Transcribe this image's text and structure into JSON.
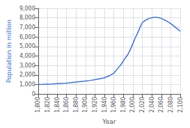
{
  "chart_data": {
    "type": "line",
    "xlabel": "Year",
    "ylabel": "Population in million",
    "x": [
      1800,
      1810,
      1820,
      1830,
      1840,
      1850,
      1860,
      1870,
      1880,
      1890,
      1900,
      1910,
      1920,
      1930,
      1940,
      1950,
      1960,
      1970,
      1975,
      1980,
      1985,
      1990,
      1995,
      2000,
      2005,
      2010,
      2015,
      2020,
      2025,
      2030,
      2035,
      2040,
      2045,
      2050,
      2055,
      2060,
      2065,
      2070,
      2080,
      2090,
      2100
    ],
    "values": [
      1000,
      1010,
      1040,
      1060,
      1090,
      1120,
      1150,
      1210,
      1260,
      1310,
      1360,
      1430,
      1510,
      1610,
      1710,
      1910,
      2200,
      2800,
      3100,
      3500,
      3850,
      4200,
      4700,
      5300,
      5900,
      6400,
      7000,
      7500,
      7700,
      7850,
      7950,
      8020,
      8060,
      8060,
      8020,
      7950,
      7820,
      7700,
      7400,
      7000,
      6600
    ],
    "color": "#4472c4",
    "xlim": [
      1800,
      2100
    ],
    "ylim": [
      0,
      9000
    ],
    "xticks": [
      1800,
      1820,
      1840,
      1860,
      1880,
      1900,
      1920,
      1940,
      1960,
      1980,
      2000,
      2020,
      2040,
      2060,
      2080,
      2100
    ],
    "yticks": [
      0,
      1000,
      2000,
      3000,
      4000,
      5000,
      6000,
      7000,
      8000,
      9000
    ],
    "grid": true
  }
}
